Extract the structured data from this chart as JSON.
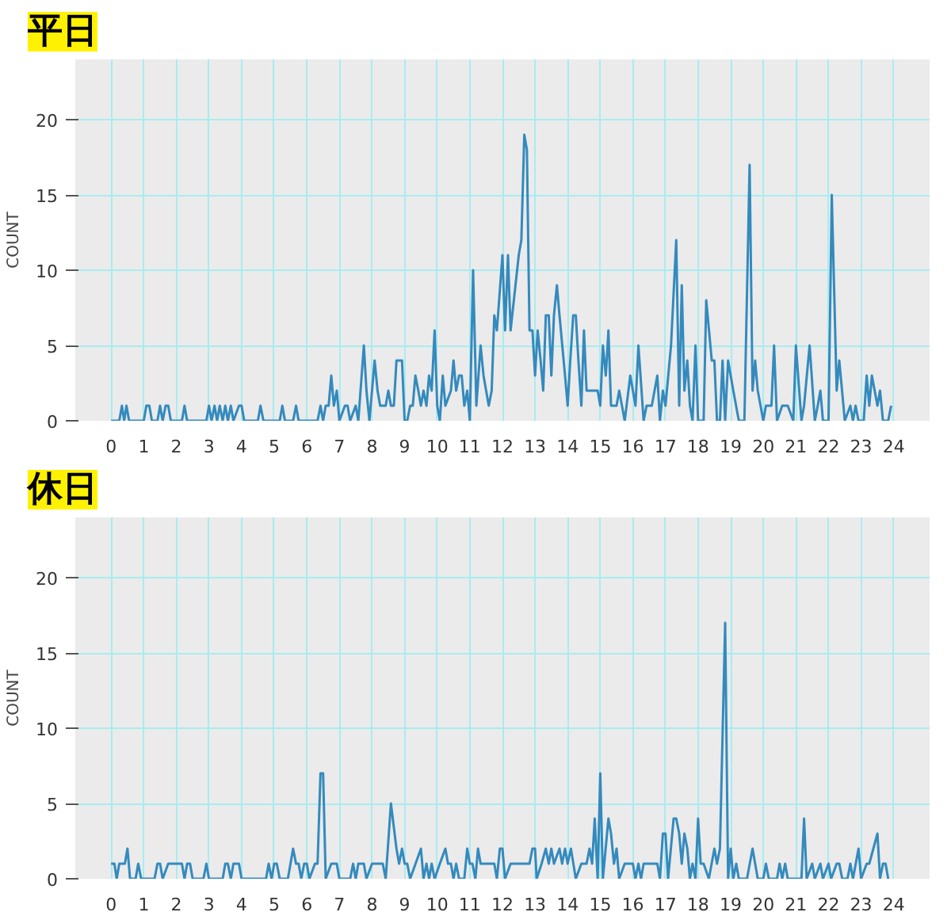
{
  "chart_data": [
    {
      "type": "line",
      "title": "平日",
      "ylabel": "COUNT",
      "xlim": [
        -1.1,
        25.1
      ],
      "ylim": [
        0,
        24
      ],
      "xticks": [
        0,
        1,
        2,
        3,
        4,
        5,
        6,
        7,
        8,
        9,
        10,
        11,
        12,
        13,
        14,
        15,
        16,
        17,
        18,
        19,
        20,
        21,
        22,
        23,
        24
      ],
      "yticks": [
        0,
        5,
        10,
        15,
        20
      ],
      "grid": true,
      "x": [
        0,
        0.25,
        0.33,
        0.4,
        0.47,
        0.55,
        1.0,
        1.08,
        1.17,
        1.25,
        1.42,
        1.5,
        1.58,
        1.67,
        1.75,
        1.83,
        2.17,
        2.25,
        2.33,
        2.92,
        3.0,
        3.08,
        3.17,
        3.25,
        3.33,
        3.42,
        3.5,
        3.58,
        3.67,
        3.75,
        3.92,
        4.0,
        4.08,
        4.5,
        4.58,
        4.67,
        5.17,
        5.25,
        5.33,
        5.58,
        5.67,
        5.75,
        6.33,
        6.42,
        6.5,
        6.58,
        6.67,
        6.75,
        6.83,
        6.92,
        7.0,
        7.17,
        7.25,
        7.33,
        7.5,
        7.58,
        7.75,
        7.83,
        7.92,
        8.08,
        8.17,
        8.25,
        8.42,
        8.5,
        8.58,
        8.67,
        8.75,
        8.92,
        9.0,
        9.08,
        9.17,
        9.25,
        9.33,
        9.42,
        9.5,
        9.58,
        9.67,
        9.75,
        9.83,
        9.92,
        10.0,
        10.08,
        10.17,
        10.25,
        10.42,
        10.5,
        10.58,
        10.67,
        10.75,
        10.83,
        10.92,
        11.0,
        11.1,
        11.2,
        11.33,
        11.42,
        11.5,
        11.58,
        11.67,
        11.75,
        11.83,
        12.0,
        12.08,
        12.17,
        12.25,
        12.5,
        12.58,
        12.67,
        12.75,
        12.83,
        12.92,
        13.0,
        13.08,
        13.17,
        13.25,
        13.33,
        13.42,
        13.5,
        13.58,
        13.67,
        13.75,
        13.92,
        14.0,
        14.08,
        14.17,
        14.25,
        14.33,
        14.42,
        14.5,
        14.58,
        14.75,
        14.92,
        15.0,
        15.08,
        15.17,
        15.25,
        15.33,
        15.5,
        15.58,
        15.75,
        15.92,
        16.08,
        16.17,
        16.33,
        16.42,
        16.58,
        16.75,
        16.83,
        16.92,
        17.0,
        17.17,
        17.33,
        17.42,
        17.5,
        17.58,
        17.67,
        17.75,
        17.83,
        17.92,
        18.0,
        18.17,
        18.25,
        18.42,
        18.5,
        18.58,
        18.67,
        18.75,
        18.83,
        18.92,
        19.08,
        19.25,
        19.42,
        19.58,
        19.67,
        19.75,
        19.83,
        20.0,
        20.08,
        20.25,
        20.33,
        20.42,
        20.58,
        20.75,
        20.92,
        21.0,
        21.17,
        21.25,
        21.42,
        21.58,
        21.67,
        21.75,
        21.83,
        22.0,
        22.1,
        22.25,
        22.33,
        22.5,
        22.67,
        22.75,
        22.83,
        22.92,
        23.08,
        23.17,
        23.25,
        23.33,
        23.5,
        23.58,
        23.67,
        23.83,
        23.92
      ],
      "series": [
        {
          "color": "#348abd",
          "values": [
            0,
            0,
            1,
            0,
            1,
            0,
            0,
            1,
            1,
            0,
            0,
            1,
            0,
            1,
            1,
            0,
            0,
            1,
            0,
            0,
            1,
            0,
            1,
            0,
            1,
            0,
            1,
            0,
            1,
            0,
            1,
            1,
            0,
            0,
            1,
            0,
            0,
            1,
            0,
            0,
            1,
            0,
            0,
            1,
            0,
            1,
            1,
            3,
            1,
            2,
            0,
            1,
            1,
            0,
            1,
            0,
            5,
            2,
            0,
            4,
            2,
            1,
            1,
            2,
            1,
            1,
            4,
            4,
            0,
            0,
            1,
            1,
            3,
            2,
            1,
            2,
            1,
            3,
            2,
            6,
            1,
            0,
            3,
            1,
            2,
            4,
            2,
            3,
            3,
            1,
            2,
            0,
            10,
            1,
            5,
            3,
            2,
            1,
            2,
            7,
            6,
            11,
            6,
            11,
            6,
            11,
            12,
            19,
            18,
            6,
            6,
            3,
            6,
            4,
            2,
            7,
            7,
            3,
            7,
            9,
            7,
            3,
            1,
            4,
            7,
            7,
            4,
            1,
            6,
            2,
            2,
            2,
            1,
            5,
            3,
            6,
            1,
            1,
            2,
            0,
            3,
            1,
            5,
            0,
            1,
            1,
            3,
            0,
            2,
            1,
            5,
            12,
            1,
            9,
            2,
            4,
            1,
            0,
            5,
            0,
            0,
            8,
            4,
            4,
            0,
            0,
            4,
            0,
            4,
            2,
            0,
            0,
            17,
            2,
            4,
            2,
            0,
            1,
            1,
            5,
            0,
            1,
            1,
            0,
            5,
            0,
            1,
            5,
            0,
            1,
            2,
            0,
            0,
            15,
            2,
            4,
            0,
            1,
            0,
            1,
            0,
            0,
            3,
            1,
            3,
            1,
            2,
            0,
            0,
            1
          ]
        }
      ]
    },
    {
      "type": "line",
      "title": "休日",
      "ylabel": "COUNT",
      "xlim": [
        -1.1,
        25.1
      ],
      "ylim": [
        0,
        24
      ],
      "xticks": [
        0,
        1,
        2,
        3,
        4,
        5,
        6,
        7,
        8,
        9,
        10,
        11,
        12,
        13,
        14,
        15,
        16,
        17,
        18,
        19,
        20,
        21,
        22,
        23,
        24
      ],
      "yticks": [
        0,
        5,
        10,
        15,
        20
      ],
      "grid": true,
      "x": [
        0,
        0.1,
        0.17,
        0.25,
        0.42,
        0.5,
        0.58,
        0.75,
        0.83,
        0.92,
        1.33,
        1.42,
        1.5,
        1.58,
        1.75,
        2.17,
        2.25,
        2.33,
        2.42,
        2.5,
        2.83,
        2.92,
        3.0,
        3.42,
        3.5,
        3.58,
        3.67,
        3.75,
        3.92,
        4.0,
        4.75,
        4.83,
        4.92,
        5.0,
        5.08,
        5.17,
        5.42,
        5.58,
        5.67,
        5.75,
        5.83,
        5.92,
        6.0,
        6.08,
        6.25,
        6.33,
        6.42,
        6.5,
        6.58,
        6.75,
        6.92,
        7.0,
        7.33,
        7.42,
        7.5,
        7.58,
        7.75,
        7.83,
        8.0,
        8.33,
        8.42,
        8.58,
        8.75,
        8.83,
        8.92,
        9.0,
        9.08,
        9.17,
        9.5,
        9.58,
        9.67,
        9.75,
        9.83,
        9.92,
        10.08,
        10.25,
        10.33,
        10.42,
        10.5,
        10.58,
        10.67,
        10.83,
        10.92,
        11.0,
        11.08,
        11.17,
        11.25,
        11.33,
        11.58,
        11.75,
        11.83,
        11.92,
        12.0,
        12.08,
        12.25,
        12.83,
        12.92,
        13.0,
        13.05,
        13.2,
        13.33,
        13.42,
        13.5,
        13.58,
        13.75,
        13.83,
        13.92,
        14.0,
        14.1,
        14.25,
        14.42,
        14.58,
        14.67,
        14.75,
        14.83,
        14.92,
        15.0,
        15.08,
        15.25,
        15.33,
        15.42,
        15.5,
        15.58,
        15.75,
        16.0,
        16.08,
        16.17,
        16.25,
        16.33,
        16.75,
        16.83,
        16.92,
        17.0,
        17.08,
        17.25,
        17.33,
        17.42,
        17.5,
        17.58,
        17.67,
        17.75,
        17.83,
        17.92,
        18.0,
        18.08,
        18.17,
        18.33,
        18.5,
        18.58,
        18.67,
        18.83,
        18.92,
        19.0,
        19.08,
        19.17,
        19.25,
        19.5,
        19.67,
        19.83,
        20.0,
        20.08,
        20.17,
        20.42,
        20.5,
        20.58,
        20.67,
        20.75,
        21.17,
        21.25,
        21.33,
        21.5,
        21.58,
        21.75,
        21.83,
        22.0,
        22.08,
        22.25,
        22.33,
        22.42,
        22.58,
        22.67,
        22.75,
        22.92,
        23.0,
        23.17,
        23.25,
        23.5,
        23.58,
        23.67,
        23.75,
        23.83
      ],
      "series": [
        {
          "color": "#348abd",
          "values": [
            1,
            1,
            0,
            1,
            1,
            2,
            0,
            0,
            1,
            0,
            0,
            1,
            1,
            0,
            1,
            1,
            0,
            1,
            1,
            0,
            0,
            1,
            0,
            0,
            1,
            1,
            0,
            1,
            1,
            0,
            0,
            1,
            0,
            1,
            1,
            0,
            0,
            2,
            1,
            1,
            0,
            1,
            1,
            0,
            1,
            1,
            7,
            7,
            0,
            1,
            1,
            0,
            0,
            1,
            0,
            1,
            1,
            0,
            1,
            1,
            0,
            5,
            2,
            1,
            2,
            1,
            1,
            0,
            2,
            0,
            1,
            0,
            1,
            0,
            1,
            2,
            1,
            1,
            0,
            1,
            0,
            0,
            2,
            1,
            1,
            0,
            2,
            1,
            1,
            1,
            0,
            2,
            2,
            0,
            1,
            1,
            2,
            2,
            0,
            1,
            2,
            1,
            2,
            1,
            2,
            1,
            2,
            1,
            2,
            0,
            1,
            1,
            2,
            1,
            4,
            0,
            7,
            0,
            4,
            3,
            1,
            2,
            0,
            1,
            1,
            0,
            1,
            0,
            1,
            1,
            0,
            3,
            3,
            0,
            4,
            4,
            3,
            1,
            3,
            2,
            0,
            1,
            0,
            4,
            1,
            1,
            0,
            2,
            1,
            2,
            17,
            0,
            2,
            0,
            1,
            0,
            0,
            2,
            0,
            0,
            1,
            0,
            0,
            1,
            0,
            1,
            0,
            0,
            4,
            0,
            1,
            0,
            1,
            0,
            1,
            0,
            1,
            1,
            0,
            0,
            1,
            0,
            2,
            0,
            1,
            1,
            3,
            0,
            1,
            1,
            0
          ]
        }
      ]
    }
  ]
}
